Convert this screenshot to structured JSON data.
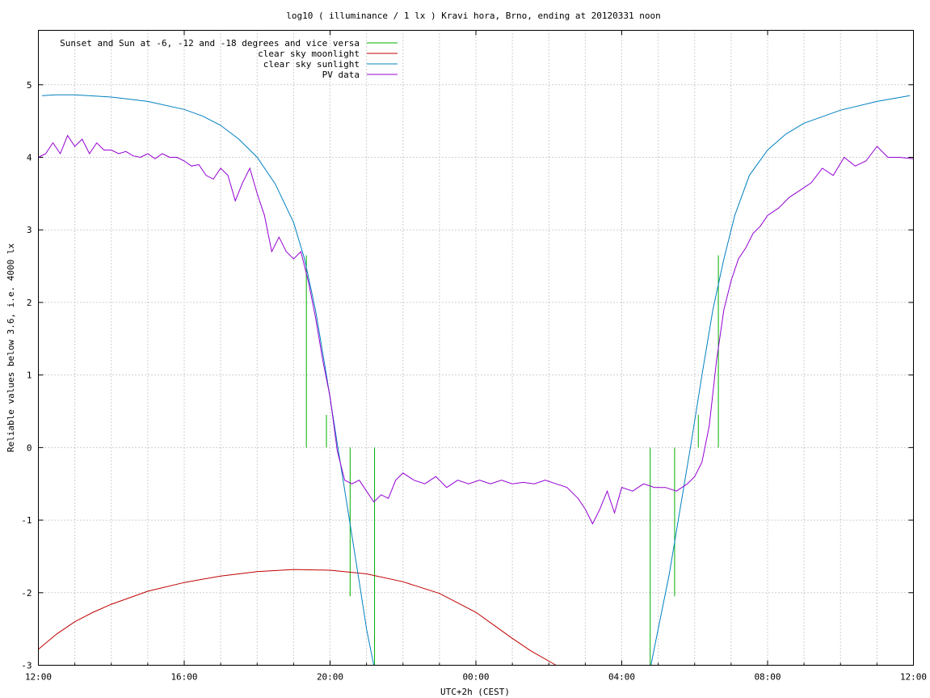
{
  "chart_data": {
    "type": "line",
    "title": "log10 ( illuminance / 1 lx ) Kravi hora, Brno, ending at 20120331 noon",
    "xlabel": "UTC+2h (CEST)",
    "ylabel": "Reliable values below 3.6, i.e. 4000 lx",
    "x_unit": "hours since 12:00 (day 1)",
    "xlim": [
      0,
      24
    ],
    "ylim": [
      -3,
      5.75
    ],
    "x_ticks": [
      {
        "value": 0,
        "label": "12:00"
      },
      {
        "value": 4,
        "label": "16:00"
      },
      {
        "value": 8,
        "label": "20:00"
      },
      {
        "value": 12,
        "label": "00:00"
      },
      {
        "value": 16,
        "label": "04:00"
      },
      {
        "value": 20,
        "label": "08:00"
      },
      {
        "value": 24,
        "label": "12:00"
      }
    ],
    "y_ticks": [
      {
        "value": -3,
        "label": "-3"
      },
      {
        "value": -2,
        "label": "-2"
      },
      {
        "value": -1,
        "label": "-1"
      },
      {
        "value": 0,
        "label": "0"
      },
      {
        "value": 1,
        "label": "1"
      },
      {
        "value": 2,
        "label": "2"
      },
      {
        "value": 3,
        "label": "3"
      },
      {
        "value": 4,
        "label": "4"
      },
      {
        "value": 5,
        "label": "5"
      }
    ],
    "grid": true,
    "legend_position": "top-left",
    "series": [
      {
        "name": "Sunset and Sun at -6, -12 and -18 degrees and vice versa",
        "color": "#00b000",
        "kind": "impulses",
        "segments": [
          [
            7.35,
            0,
            7.35,
            2.65
          ],
          [
            7.9,
            0,
            7.9,
            0.45
          ],
          [
            8.55,
            0,
            8.55,
            -2.05
          ],
          [
            9.22,
            0,
            9.22,
            -3
          ],
          [
            16.78,
            0,
            16.78,
            -3
          ],
          [
            17.45,
            0,
            17.45,
            -2.05
          ],
          [
            18.1,
            0,
            18.1,
            0.45
          ],
          [
            18.65,
            0,
            18.65,
            2.65
          ]
        ]
      },
      {
        "name": "clear sky moonlight",
        "color": "#c00000",
        "kind": "line",
        "x": [
          0,
          0.5,
          1,
          1.5,
          2,
          3,
          4,
          5,
          6,
          7,
          8,
          9,
          10,
          11,
          12,
          12.5,
          13,
          13.5,
          14.2
        ],
        "y": [
          -2.78,
          -2.57,
          -2.4,
          -2.27,
          -2.16,
          -1.98,
          -1.86,
          -1.77,
          -1.71,
          -1.68,
          -1.69,
          -1.74,
          -1.85,
          -2.01,
          -2.27,
          -2.45,
          -2.63,
          -2.8,
          -3.0
        ]
      },
      {
        "name": "clear sky sunlight",
        "color": "#0080c0",
        "kind": "line",
        "x": [
          0.1,
          0.5,
          1,
          2,
          3,
          4,
          4.5,
          5,
          5.5,
          6,
          6.5,
          7,
          7.3,
          7.6,
          7.9,
          8.2,
          8.5,
          8.8,
          9.0,
          9.2,
          16.8,
          17.0,
          17.3,
          17.6,
          17.9,
          18.2,
          18.5,
          18.8,
          19.1,
          19.5,
          20,
          20.5,
          21,
          22,
          23,
          23.9
        ],
        "y": [
          4.85,
          4.86,
          4.86,
          4.83,
          4.77,
          4.66,
          4.57,
          4.44,
          4.25,
          4.0,
          3.63,
          3.1,
          2.6,
          1.9,
          1.0,
          0.05,
          -0.9,
          -1.85,
          -2.5,
          -3.0,
          -3.0,
          -2.5,
          -1.75,
          -0.85,
          0.05,
          1.0,
          1.9,
          2.6,
          3.2,
          3.75,
          4.1,
          4.32,
          4.47,
          4.65,
          4.77,
          4.85
        ]
      },
      {
        "name": "PV data",
        "color": "#9400d3",
        "kind": "line",
        "x": [
          0,
          0.2,
          0.4,
          0.6,
          0.8,
          1.0,
          1.2,
          1.4,
          1.6,
          1.8,
          2.0,
          2.2,
          2.4,
          2.6,
          2.8,
          3.0,
          3.2,
          3.4,
          3.6,
          3.8,
          4.0,
          4.2,
          4.4,
          4.6,
          4.8,
          5.0,
          5.2,
          5.4,
          5.6,
          5.8,
          6.0,
          6.2,
          6.4,
          6.6,
          6.8,
          7.0,
          7.2,
          7.4,
          7.6,
          7.8,
          8.0,
          8.2,
          8.4,
          8.6,
          8.8,
          9.0,
          9.2,
          9.4,
          9.6,
          9.8,
          10.0,
          10.3,
          10.6,
          10.9,
          11.2,
          11.5,
          11.8,
          12.1,
          12.4,
          12.7,
          13.0,
          13.3,
          13.6,
          13.9,
          14.2,
          14.5,
          14.8,
          15.0,
          15.2,
          15.4,
          15.6,
          15.8,
          16.0,
          16.3,
          16.6,
          16.9,
          17.2,
          17.5,
          17.8,
          18.0,
          18.2,
          18.4,
          18.6,
          18.8,
          19.0,
          19.2,
          19.4,
          19.6,
          19.8,
          20.0,
          20.3,
          20.6,
          20.9,
          21.2,
          21.5,
          21.8,
          22.1,
          22.4,
          22.7,
          23.0,
          23.3,
          23.6,
          24.0
        ],
        "y": [
          4.0,
          4.05,
          4.2,
          4.05,
          4.3,
          4.15,
          4.25,
          4.05,
          4.2,
          4.1,
          4.1,
          4.05,
          4.08,
          4.02,
          4.0,
          4.05,
          3.98,
          4.05,
          4.0,
          4.0,
          3.95,
          3.88,
          3.9,
          3.75,
          3.7,
          3.85,
          3.75,
          3.4,
          3.65,
          3.85,
          3.5,
          3.2,
          2.7,
          2.9,
          2.7,
          2.6,
          2.7,
          2.3,
          1.8,
          1.2,
          0.7,
          -0.05,
          -0.45,
          -0.5,
          -0.45,
          -0.6,
          -0.75,
          -0.65,
          -0.7,
          -0.45,
          -0.35,
          -0.45,
          -0.5,
          -0.4,
          -0.55,
          -0.45,
          -0.5,
          -0.45,
          -0.5,
          -0.45,
          -0.5,
          -0.48,
          -0.5,
          -0.45,
          -0.5,
          -0.55,
          -0.7,
          -0.85,
          -1.05,
          -0.85,
          -0.6,
          -0.9,
          -0.55,
          -0.6,
          -0.5,
          -0.55,
          -0.55,
          -0.6,
          -0.5,
          -0.4,
          -0.2,
          0.3,
          1.2,
          1.9,
          2.3,
          2.6,
          2.75,
          2.95,
          3.05,
          3.2,
          3.3,
          3.45,
          3.55,
          3.65,
          3.85,
          3.75,
          4.0,
          3.88,
          3.95,
          4.15,
          4.0,
          4.0,
          3.98
        ]
      }
    ]
  }
}
